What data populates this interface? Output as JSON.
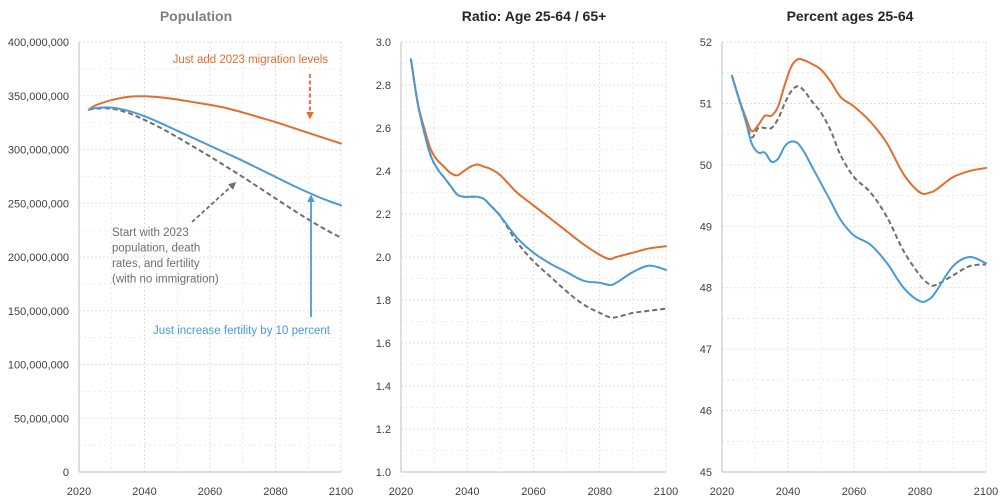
{
  "colors": {
    "orange": "#E46C2E",
    "blue": "#4A9AD6",
    "gray": "#6E6E6E",
    "grid": "#D9D9D9",
    "axis": "#BFBFBF",
    "title_gray": "#7F7F7F",
    "title_black": "#262626"
  },
  "chart_data": [
    {
      "type": "line",
      "title": "Population",
      "xlabel": "",
      "ylabel": "",
      "xlim": [
        2020,
        2100
      ],
      "ylim": [
        0,
        400000000
      ],
      "x_ticks": [
        2020,
        2040,
        2060,
        2080,
        2100
      ],
      "y_ticks": [
        0,
        50000000,
        100000000,
        150000000,
        200000000,
        250000000,
        300000000,
        350000000,
        400000000
      ],
      "x_tick_labels": [
        "2020",
        "2040",
        "2060",
        "2080",
        "2100"
      ],
      "y_tick_labels": [
        "0",
        "50,000,000",
        "100,000,000",
        "150,000,000",
        "200,000,000",
        "250,000,000",
        "300,000,000",
        "350,000,000",
        "400,000,000"
      ],
      "grid": true,
      "series": [
        {
          "key": "migration",
          "style": "solid",
          "color": "#E46C2E",
          "x": [
            2023,
            2025,
            2030,
            2035,
            2040,
            2045,
            2050,
            2055,
            2060,
            2065,
            2070,
            2075,
            2080,
            2085,
            2090,
            2095,
            2100
          ],
          "values": [
            337000000,
            341000000,
            346000000,
            349000000,
            349500000,
            348500000,
            346500000,
            344000000,
            341500000,
            338500000,
            334500000,
            330000000,
            325500000,
            320500000,
            315500000,
            310500000,
            305500000
          ]
        },
        {
          "key": "fertility",
          "style": "solid",
          "color": "#4A9AD6",
          "x": [
            2023,
            2025,
            2030,
            2035,
            2040,
            2045,
            2050,
            2055,
            2060,
            2065,
            2070,
            2075,
            2080,
            2085,
            2090,
            2095,
            2100
          ],
          "values": [
            337000000,
            338500000,
            339000000,
            336000000,
            331000000,
            324500000,
            317500000,
            310500000,
            303500000,
            296500000,
            289500000,
            282000000,
            274500000,
            267000000,
            260000000,
            253500000,
            248000000
          ]
        },
        {
          "key": "baseline",
          "style": "dashed",
          "color": "#6E6E6E",
          "x": [
            2023,
            2025,
            2030,
            2035,
            2040,
            2045,
            2050,
            2055,
            2060,
            2065,
            2070,
            2075,
            2080,
            2085,
            2090,
            2095,
            2100
          ],
          "values": [
            337000000,
            338000000,
            338000000,
            334000000,
            327500000,
            320000000,
            311500000,
            302500000,
            293500000,
            284000000,
            274500000,
            264500000,
            254500000,
            244500000,
            235000000,
            226000000,
            218000000
          ]
        }
      ],
      "annotations": [
        {
          "key": "migration_label",
          "color": "#E46C2E",
          "lines": [
            "Just add 2023 migration levels"
          ]
        },
        {
          "key": "baseline_label",
          "color": "#6E6E6E",
          "lines": [
            "Start with 2023",
            "population, death",
            "rates, and fertility",
            "(with no immigration)"
          ]
        },
        {
          "key": "fertility_label",
          "color": "#4A9AD6",
          "lines": [
            "Just increase fertility by 10 percent"
          ]
        }
      ]
    },
    {
      "type": "line",
      "title": "Ratio: Age 25-64 / 65+",
      "xlabel": "",
      "ylabel": "",
      "xlim": [
        2020,
        2100
      ],
      "ylim": [
        1.0,
        3.0
      ],
      "x_ticks": [
        2020,
        2040,
        2060,
        2080,
        2100
      ],
      "y_ticks": [
        1.0,
        1.2,
        1.4,
        1.6,
        1.8,
        2.0,
        2.2,
        2.4,
        2.6,
        2.8,
        3.0
      ],
      "x_tick_labels": [
        "2020",
        "2040",
        "2060",
        "2080",
        "2100"
      ],
      "y_tick_labels": [
        "1.0",
        "1.2",
        "1.4",
        "1.6",
        "1.8",
        "2.0",
        "2.2",
        "2.4",
        "2.6",
        "2.8",
        "3.0"
      ],
      "grid": true,
      "series": [
        {
          "key": "migration",
          "style": "solid",
          "color": "#E46C2E",
          "x": [
            2023,
            2025,
            2027,
            2029,
            2031,
            2033,
            2035,
            2037,
            2039,
            2041,
            2043,
            2045,
            2047,
            2050,
            2055,
            2060,
            2065,
            2070,
            2075,
            2080,
            2083,
            2085,
            2090,
            2095,
            2100
          ],
          "values": [
            2.92,
            2.72,
            2.6,
            2.5,
            2.45,
            2.42,
            2.39,
            2.38,
            2.4,
            2.42,
            2.43,
            2.42,
            2.41,
            2.38,
            2.3,
            2.24,
            2.18,
            2.12,
            2.06,
            2.01,
            1.99,
            2.0,
            2.02,
            2.04,
            2.05
          ]
        },
        {
          "key": "fertility",
          "style": "solid",
          "color": "#4A9AD6",
          "x": [
            2023,
            2025,
            2027,
            2029,
            2031,
            2033,
            2035,
            2037,
            2039,
            2041,
            2043,
            2045,
            2047,
            2050,
            2055,
            2060,
            2065,
            2070,
            2075,
            2080,
            2083,
            2085,
            2090,
            2095,
            2100
          ],
          "values": [
            2.92,
            2.72,
            2.58,
            2.47,
            2.41,
            2.37,
            2.33,
            2.29,
            2.28,
            2.28,
            2.28,
            2.27,
            2.24,
            2.19,
            2.09,
            2.02,
            1.97,
            1.93,
            1.89,
            1.88,
            1.87,
            1.88,
            1.93,
            1.96,
            1.94
          ]
        },
        {
          "key": "baseline",
          "style": "dashed",
          "color": "#6E6E6E",
          "x": [
            2023,
            2025,
            2027,
            2029,
            2031,
            2033,
            2035,
            2037,
            2039,
            2041,
            2043,
            2045,
            2047,
            2050,
            2055,
            2060,
            2065,
            2070,
            2075,
            2080,
            2083,
            2085,
            2090,
            2095,
            2100
          ],
          "values": [
            2.92,
            2.72,
            2.58,
            2.47,
            2.41,
            2.37,
            2.33,
            2.29,
            2.28,
            2.28,
            2.28,
            2.27,
            2.24,
            2.19,
            2.07,
            1.98,
            1.91,
            1.84,
            1.78,
            1.74,
            1.72,
            1.72,
            1.74,
            1.75,
            1.76
          ]
        }
      ]
    },
    {
      "type": "line",
      "title": "Percent ages 25-64",
      "xlabel": "",
      "ylabel": "",
      "xlim": [
        2020,
        2100
      ],
      "ylim": [
        45,
        52
      ],
      "x_ticks": [
        2020,
        2040,
        2060,
        2080,
        2100
      ],
      "y_ticks": [
        45,
        46,
        47,
        48,
        49,
        50,
        51,
        52
      ],
      "x_tick_labels": [
        "2020",
        "2040",
        "2060",
        "2080",
        "2100"
      ],
      "y_tick_labels": [
        "45",
        "46",
        "47",
        "48",
        "49",
        "50",
        "51",
        "52"
      ],
      "grid": true,
      "series": [
        {
          "key": "migration",
          "style": "solid",
          "color": "#E46C2E",
          "x": [
            2023,
            2025,
            2027,
            2029,
            2031,
            2033,
            2035,
            2037,
            2039,
            2041,
            2043,
            2045,
            2047,
            2050,
            2053,
            2056,
            2060,
            2065,
            2070,
            2075,
            2080,
            2083,
            2085,
            2090,
            2095,
            2100
          ],
          "values": [
            51.45,
            51.1,
            50.8,
            50.55,
            50.65,
            50.8,
            50.8,
            50.95,
            51.3,
            51.6,
            51.72,
            51.7,
            51.65,
            51.55,
            51.35,
            51.1,
            50.95,
            50.7,
            50.35,
            49.85,
            49.55,
            49.55,
            49.6,
            49.8,
            49.9,
            49.95
          ]
        },
        {
          "key": "fertility",
          "style": "solid",
          "color": "#4A9AD6",
          "x": [
            2023,
            2025,
            2027,
            2029,
            2031,
            2033,
            2035,
            2037,
            2039,
            2041,
            2043,
            2045,
            2047,
            2050,
            2053,
            2056,
            2060,
            2065,
            2070,
            2075,
            2080,
            2083,
            2085,
            2090,
            2095,
            2100
          ],
          "values": [
            51.45,
            51.1,
            50.75,
            50.35,
            50.2,
            50.2,
            50.05,
            50.1,
            50.3,
            50.38,
            50.35,
            50.2,
            50.0,
            49.7,
            49.4,
            49.1,
            48.85,
            48.7,
            48.4,
            48.0,
            47.78,
            47.82,
            47.95,
            48.35,
            48.5,
            48.4
          ]
        },
        {
          "key": "baseline",
          "style": "dashed",
          "color": "#6E6E6E",
          "x": [
            2023,
            2025,
            2027,
            2029,
            2031,
            2033,
            2035,
            2037,
            2039,
            2041,
            2043,
            2045,
            2047,
            2050,
            2053,
            2056,
            2060,
            2065,
            2070,
            2075,
            2080,
            2083,
            2085,
            2090,
            2095,
            2100
          ],
          "values": [
            51.45,
            51.1,
            50.75,
            50.45,
            50.6,
            50.6,
            50.6,
            50.75,
            51.0,
            51.2,
            51.28,
            51.2,
            51.05,
            50.85,
            50.55,
            50.15,
            49.8,
            49.55,
            49.15,
            48.6,
            48.2,
            48.05,
            48.05,
            48.2,
            48.35,
            48.38
          ]
        }
      ]
    }
  ]
}
